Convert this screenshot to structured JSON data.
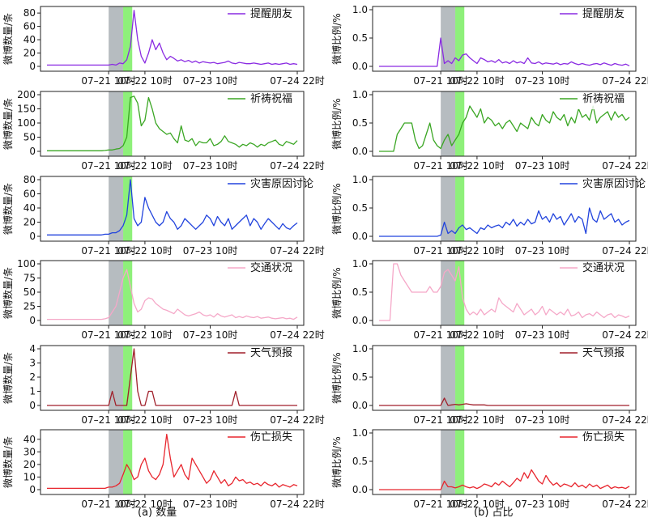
{
  "captions": {
    "left": "(a) 数量",
    "right": "(b) 占比"
  },
  "x_tick_labels": [
    "07–21 10时",
    "07–22 10时",
    "07–23 10时",
    "07–24 22时"
  ],
  "ylabel_count": "微博数量/条",
  "ylabel_ratio": "微博比例/%",
  "shaded_regions": [
    {
      "name": "gray",
      "color": "#b6bcc0",
      "x_start": 17,
      "x_end": 21
    },
    {
      "name": "green",
      "color": "#8ef07a",
      "x_start": 21,
      "x_end": 23.5
    }
  ],
  "chart_data": [
    {
      "type": "line",
      "panel": "count",
      "series": [
        {
          "name": "提醒朋友",
          "color": "#8a2be2",
          "values": [
            2,
            2,
            2,
            2,
            2,
            2,
            2,
            2,
            2,
            2,
            2,
            2,
            2,
            2,
            2,
            2,
            2,
            2,
            3,
            2,
            5,
            4,
            10,
            30,
            84,
            40,
            15,
            5,
            20,
            40,
            25,
            35,
            20,
            10,
            15,
            12,
            8,
            10,
            7,
            9,
            6,
            8,
            5,
            7,
            6,
            5,
            6,
            4,
            5,
            6,
            8,
            5,
            4,
            6,
            5,
            4,
            4,
            5,
            4,
            3,
            4,
            5,
            3,
            4,
            3,
            4,
            5,
            3,
            4,
            3
          ]
        }
      ],
      "ylim": [
        0,
        85
      ],
      "yticks": [
        0,
        20,
        40,
        60,
        80
      ]
    },
    {
      "type": "line",
      "panel": "count",
      "series": [
        {
          "name": "祈祷祝福",
          "color": "#3aa623",
          "values": [
            2,
            2,
            2,
            2,
            2,
            2,
            2,
            2,
            2,
            2,
            2,
            2,
            2,
            2,
            2,
            2,
            3,
            5,
            5,
            8,
            10,
            20,
            50,
            190,
            195,
            170,
            90,
            110,
            190,
            150,
            100,
            80,
            70,
            60,
            65,
            45,
            30,
            90,
            40,
            35,
            45,
            20,
            35,
            30,
            30,
            45,
            20,
            25,
            35,
            55,
            35,
            30,
            25,
            15,
            25,
            20,
            30,
            25,
            15,
            25,
            20,
            30,
            35,
            40,
            25,
            20,
            35,
            30,
            25,
            38
          ]
        }
      ],
      "ylim": [
        0,
        200
      ],
      "yticks": [
        0,
        50,
        100,
        150,
        200
      ]
    },
    {
      "type": "line",
      "panel": "count",
      "series": [
        {
          "name": "灾害原因讨论",
          "color": "#2244dd",
          "values": [
            2,
            2,
            2,
            2,
            2,
            2,
            2,
            2,
            2,
            2,
            2,
            2,
            2,
            2,
            2,
            2,
            3,
            3,
            5,
            5,
            8,
            15,
            30,
            80,
            25,
            15,
            20,
            55,
            40,
            30,
            20,
            15,
            20,
            35,
            25,
            20,
            10,
            15,
            25,
            20,
            15,
            10,
            15,
            20,
            30,
            25,
            15,
            28,
            20,
            15,
            25,
            10,
            15,
            20,
            25,
            30,
            15,
            25,
            20,
            10,
            18,
            25,
            20,
            15,
            10,
            18,
            12,
            10,
            15,
            19
          ]
        }
      ],
      "ylim": [
        0,
        80
      ],
      "yticks": [
        0,
        20,
        40,
        60,
        80
      ]
    },
    {
      "type": "line",
      "panel": "count",
      "series": [
        {
          "name": "交通状况",
          "color": "#f5a8c8",
          "values": [
            2,
            2,
            2,
            2,
            2,
            2,
            2,
            2,
            2,
            2,
            2,
            2,
            2,
            2,
            2,
            2,
            3,
            5,
            15,
            25,
            50,
            75,
            90,
            60,
            30,
            15,
            20,
            35,
            40,
            38,
            30,
            25,
            20,
            18,
            15,
            12,
            20,
            15,
            10,
            8,
            10,
            12,
            15,
            10,
            8,
            10,
            6,
            12,
            8,
            6,
            8,
            10,
            5,
            7,
            5,
            8,
            6,
            5,
            7,
            4,
            5,
            6,
            4,
            3,
            4,
            5,
            3,
            4,
            2,
            6
          ]
        }
      ],
      "ylim": [
        0,
        100
      ],
      "yticks": [
        0,
        25,
        50,
        75,
        100
      ]
    },
    {
      "type": "line",
      "panel": "count",
      "series": [
        {
          "name": "天气预报",
          "color": "#a01f2a",
          "values": [
            0,
            0,
            0,
            0,
            0,
            0,
            0,
            0,
            0,
            0,
            0,
            0,
            0,
            0,
            0,
            0,
            0,
            0,
            1,
            0,
            0,
            0,
            0,
            2,
            4,
            1,
            0,
            0,
            1,
            1,
            0,
            0,
            0,
            0,
            0,
            0,
            0,
            0,
            0,
            0,
            0,
            0,
            0,
            0,
            0,
            0,
            0,
            0,
            0,
            0,
            0,
            0,
            1,
            0,
            0,
            0,
            0,
            0,
            0,
            0,
            0,
            0,
            0,
            0,
            0,
            0,
            0,
            0,
            0,
            0
          ]
        }
      ],
      "ylim": [
        0,
        4
      ],
      "yticks": [
        0,
        1,
        2,
        3,
        4
      ]
    },
    {
      "type": "line",
      "panel": "count",
      "series": [
        {
          "name": "伤亡损失",
          "color": "#e8262e",
          "values": [
            1,
            1,
            1,
            1,
            1,
            1,
            1,
            1,
            1,
            1,
            1,
            1,
            1,
            1,
            1,
            1,
            1,
            2,
            2,
            3,
            5,
            12,
            20,
            15,
            8,
            10,
            20,
            25,
            15,
            10,
            8,
            12,
            20,
            44,
            25,
            10,
            15,
            20,
            12,
            8,
            25,
            20,
            15,
            10,
            5,
            8,
            15,
            10,
            5,
            8,
            3,
            5,
            10,
            7,
            8,
            5,
            6,
            4,
            5,
            3,
            6,
            4,
            3,
            5,
            2,
            4,
            3,
            2,
            4,
            3
          ]
        }
      ],
      "ylim": [
        0,
        45
      ],
      "yticks": [
        0,
        10,
        20,
        30,
        40
      ]
    },
    {
      "type": "line",
      "panel": "ratio",
      "series": [
        {
          "name": "提醒朋友",
          "color": "#8a2be2",
          "values": [
            0,
            0,
            0,
            0,
            0,
            0,
            0,
            0,
            0,
            0,
            0,
            0,
            0,
            0,
            0,
            0,
            0,
            0.5,
            0.05,
            0.1,
            0.05,
            0.15,
            0.1,
            0.2,
            0.22,
            0.15,
            0.1,
            0.05,
            0.15,
            0.12,
            0.08,
            0.1,
            0.07,
            0.12,
            0.06,
            0.08,
            0.05,
            0.1,
            0.06,
            0.08,
            0.05,
            0.15,
            0.06,
            0.05,
            0.08,
            0.04,
            0.06,
            0.05,
            0.04,
            0.06,
            0.03,
            0.05,
            0.04,
            0.08,
            0.05,
            0.03,
            0.05,
            0.03,
            0.02,
            0.04,
            0.05,
            0.03,
            0.06,
            0.04,
            0.02,
            0.05,
            0.03,
            0.02,
            0.04,
            0.01
          ]
        }
      ],
      "ylim": [
        0,
        1.0
      ],
      "yticks": [
        0.0,
        0.5,
        1.0
      ]
    },
    {
      "type": "line",
      "panel": "ratio",
      "series": [
        {
          "name": "祈祷祝福",
          "color": "#3aa623",
          "values": [
            0,
            0,
            0,
            0,
            0,
            0.3,
            0.4,
            0.5,
            0.5,
            0.5,
            0.2,
            0.05,
            0.1,
            0.3,
            0.5,
            0.2,
            0.1,
            0.05,
            0.2,
            0.3,
            0.1,
            0.2,
            0.3,
            0.5,
            0.6,
            0.8,
            0.7,
            0.6,
            0.75,
            0.5,
            0.6,
            0.55,
            0.45,
            0.5,
            0.4,
            0.5,
            0.55,
            0.45,
            0.35,
            0.5,
            0.45,
            0.4,
            0.6,
            0.5,
            0.45,
            0.65,
            0.55,
            0.5,
            0.7,
            0.6,
            0.55,
            0.65,
            0.45,
            0.6,
            0.5,
            0.75,
            0.6,
            0.65,
            0.55,
            0.8,
            0.5,
            0.6,
            0.65,
            0.7,
            0.55,
            0.7,
            0.6,
            0.65,
            0.55,
            0.6
          ]
        }
      ],
      "ylim": [
        0,
        1.0
      ],
      "yticks": [
        0.0,
        0.5,
        1.0
      ]
    },
    {
      "type": "line",
      "panel": "ratio",
      "series": [
        {
          "name": "灾害原因讨论",
          "color": "#2244dd",
          "values": [
            0,
            0,
            0,
            0,
            0,
            0,
            0,
            0,
            0,
            0,
            0,
            0,
            0,
            0,
            0,
            0,
            0,
            0.02,
            0.25,
            0.05,
            0.1,
            0.05,
            0.15,
            0.2,
            0.12,
            0.15,
            0.1,
            0.05,
            0.15,
            0.12,
            0.2,
            0.15,
            0.18,
            0.2,
            0.15,
            0.25,
            0.2,
            0.3,
            0.18,
            0.25,
            0.2,
            0.3,
            0.22,
            0.25,
            0.45,
            0.3,
            0.35,
            0.25,
            0.4,
            0.3,
            0.35,
            0.2,
            0.3,
            0.4,
            0.25,
            0.35,
            0.3,
            0.05,
            0.5,
            0.3,
            0.25,
            0.45,
            0.3,
            0.35,
            0.4,
            0.25,
            0.3,
            0.2,
            0.25,
            0.28
          ]
        }
      ],
      "ylim": [
        0,
        1.0
      ],
      "yticks": [
        0.0,
        0.5,
        1.0
      ]
    },
    {
      "type": "line",
      "panel": "ratio",
      "series": [
        {
          "name": "交通状况",
          "color": "#f5a8c8",
          "values": [
            0,
            0,
            0,
            0,
            1.0,
            1.0,
            0.8,
            0.7,
            0.6,
            0.5,
            0.5,
            0.5,
            0.5,
            0.5,
            0.6,
            0.5,
            0.5,
            0.6,
            0.85,
            0.9,
            0.8,
            0.7,
            0.95,
            0.4,
            0.2,
            0.1,
            0.15,
            0.1,
            0.2,
            0.1,
            0.15,
            0.2,
            0.15,
            0.4,
            0.3,
            0.25,
            0.2,
            0.15,
            0.3,
            0.2,
            0.1,
            0.15,
            0.2,
            0.1,
            0.15,
            0.25,
            0.1,
            0.2,
            0.15,
            0.1,
            0.15,
            0.1,
            0.2,
            0.08,
            0.1,
            0.15,
            0.05,
            0.1,
            0.12,
            0.08,
            0.15,
            0.1,
            0.05,
            0.1,
            0.12,
            0.05,
            0.1,
            0.08,
            0.05,
            0.08
          ]
        }
      ],
      "ylim": [
        0,
        1.0
      ],
      "yticks": [
        0.0,
        0.5,
        1.0
      ]
    },
    {
      "type": "line",
      "panel": "ratio",
      "series": [
        {
          "name": "天气预报",
          "color": "#a01f2a",
          "values": [
            0,
            0,
            0,
            0,
            0,
            0,
            0,
            0,
            0,
            0,
            0,
            0,
            0,
            0,
            0,
            0,
            0,
            0,
            0.13,
            0,
            0.01,
            0.02,
            0.01,
            0.02,
            0.03,
            0.02,
            0.01,
            0.01,
            0.01,
            0.01,
            0,
            0,
            0,
            0,
            0,
            0,
            0,
            0,
            0,
            0,
            0,
            0,
            0,
            0,
            0,
            0,
            0,
            0,
            0,
            0,
            0,
            0,
            0,
            0,
            0,
            0,
            0,
            0,
            0,
            0,
            0,
            0,
            0,
            0,
            0,
            0,
            0,
            0,
            0,
            0
          ]
        }
      ],
      "ylim": [
        0,
        1.0
      ],
      "yticks": [
        0.0,
        0.5,
        1.0
      ]
    },
    {
      "type": "line",
      "panel": "ratio",
      "series": [
        {
          "name": "伤亡损失",
          "color": "#e8262e",
          "values": [
            0,
            0,
            0,
            0,
            0,
            0,
            0,
            0,
            0,
            0,
            0,
            0,
            0,
            0,
            0,
            0,
            0,
            0,
            0.15,
            0.05,
            0.05,
            0.03,
            0.05,
            0.08,
            0.05,
            0.03,
            0.05,
            0.02,
            0.05,
            0.1,
            0.08,
            0.05,
            0.12,
            0.08,
            0.15,
            0.1,
            0.05,
            0.12,
            0.2,
            0.15,
            0.3,
            0.2,
            0.35,
            0.25,
            0.15,
            0.1,
            0.25,
            0.15,
            0.08,
            0.12,
            0.05,
            0.1,
            0.08,
            0.05,
            0.12,
            0.05,
            0.08,
            0.03,
            0.1,
            0.05,
            0.08,
            0.02,
            0.05,
            0.08,
            0.02,
            0.05,
            0.03,
            0.04,
            0.02,
            0.06
          ]
        }
      ],
      "ylim": [
        0,
        1.0
      ],
      "yticks": [
        0.0,
        0.5,
        1.0
      ]
    }
  ]
}
